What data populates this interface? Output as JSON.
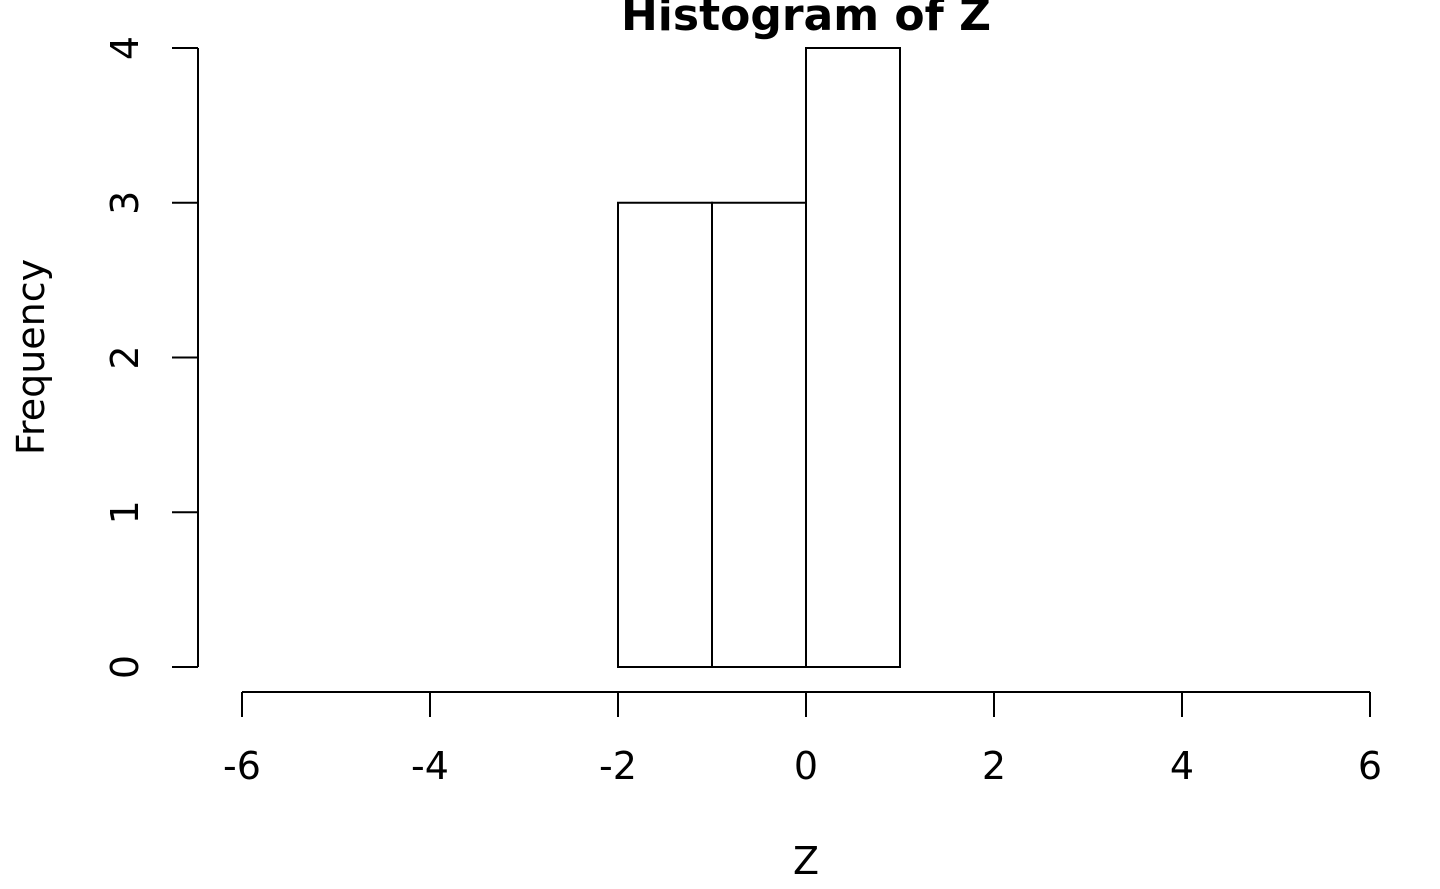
{
  "chart_data": {
    "type": "bar",
    "title": "Histogram of Z",
    "xlabel": "Z",
    "ylabel": "Frequency",
    "bins": [
      {
        "start": -6,
        "end": -5,
        "count": 0
      },
      {
        "start": -5,
        "end": -4,
        "count": 0
      },
      {
        "start": -4,
        "end": -3,
        "count": 0
      },
      {
        "start": -3,
        "end": -2,
        "count": 0
      },
      {
        "start": -2,
        "end": -1,
        "count": 3
      },
      {
        "start": -1,
        "end": 0,
        "count": 3
      },
      {
        "start": 0,
        "end": 1,
        "count": 4
      },
      {
        "start": 1,
        "end": 2,
        "count": 0
      },
      {
        "start": 2,
        "end": 3,
        "count": 0
      },
      {
        "start": 3,
        "end": 4,
        "count": 0
      },
      {
        "start": 4,
        "end": 5,
        "count": 0
      },
      {
        "start": 5,
        "end": 6,
        "count": 0
      }
    ],
    "xlim": [
      -6,
      6
    ],
    "ylim": [
      0,
      4
    ],
    "x_ticks": [
      "-6",
      "-4",
      "-2",
      "0",
      "2",
      "4",
      "6"
    ],
    "y_ticks": [
      "0",
      "1",
      "2",
      "3",
      "4"
    ],
    "grid": false,
    "bar_fill": "#ffffff",
    "bar_stroke": "#000000"
  }
}
